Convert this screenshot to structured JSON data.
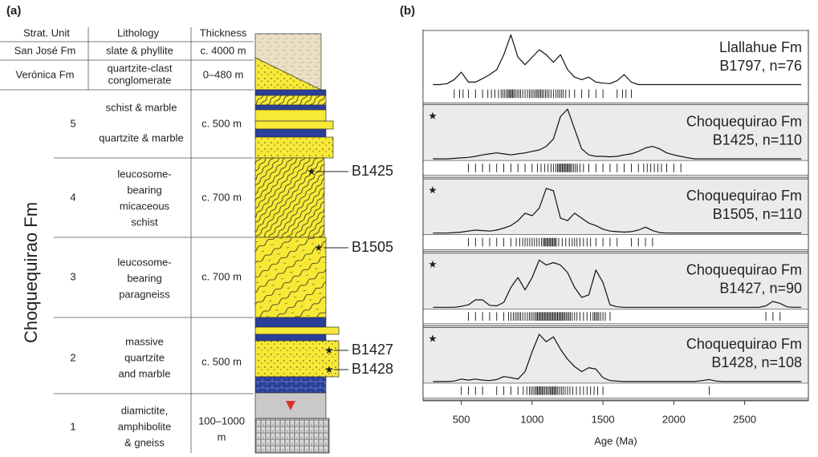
{
  "panel_a": {
    "label": "(a)",
    "headers": [
      "Strat. Unit",
      "Lithology",
      "Thickness"
    ],
    "formation": "Choquequirao Fm",
    "rows": [
      {
        "unit": "San José Fm",
        "lithology": [
          "slate & phyllite"
        ],
        "thickness": [
          "c. 4000 m"
        ]
      },
      {
        "unit": "Verónica Fm",
        "lithology": [
          "quartzite-clast",
          "conglomerate"
        ],
        "thickness": [
          "0–480 m"
        ]
      },
      {
        "unit": "5",
        "lithology": [
          "schist & marble",
          "quartzite & marble"
        ],
        "thickness": [
          "c. 500 m"
        ]
      },
      {
        "unit": "4",
        "lithology": [
          "leucosome-",
          "bearing",
          "micaceous",
          "schist"
        ],
        "thickness": [
          "c. 700 m"
        ]
      },
      {
        "unit": "3",
        "lithology": [
          "leucosome-",
          "bearing",
          "paragneiss"
        ],
        "thickness": [
          "c. 700 m"
        ]
      },
      {
        "unit": "2",
        "lithology": [
          "massive",
          "quartzite",
          "and marble"
        ],
        "thickness": [
          "c. 500 m"
        ]
      },
      {
        "unit": "1",
        "lithology": [
          "diamictite,",
          "amphibolite",
          "& gneiss"
        ],
        "thickness": [
          "100–1000",
          "m"
        ]
      }
    ],
    "samples": [
      "B1425",
      "B1505",
      "B1427",
      "B1428"
    ]
  },
  "chart_data": {
    "type": "line",
    "label": "(b)",
    "x_label": "Age (Ma)",
    "xlim": [
      230,
      2950
    ],
    "xticks": [
      500,
      1000,
      1500,
      2000,
      2500
    ],
    "x": [
      300,
      350,
      400,
      450,
      500,
      550,
      600,
      650,
      700,
      750,
      800,
      850,
      900,
      950,
      1000,
      1050,
      1100,
      1150,
      1200,
      1250,
      1300,
      1350,
      1400,
      1450,
      1500,
      1550,
      1600,
      1650,
      1700,
      1750,
      1800,
      1850,
      1900,
      1950,
      2000,
      2050,
      2100,
      2150,
      2200,
      2250,
      2300,
      2350,
      2400,
      2450,
      2500,
      2550,
      2600,
      2650,
      2700,
      2750,
      2800,
      2850,
      2900
    ],
    "series": [
      {
        "name": "Llallahue Fm",
        "sample_label": "B1797, n=76",
        "color": "#111111",
        "values": [
          0,
          0,
          0.02,
          0.1,
          0.25,
          0.05,
          0.05,
          0.12,
          0.2,
          0.3,
          0.6,
          1.0,
          0.55,
          0.4,
          0.55,
          0.7,
          0.6,
          0.45,
          0.6,
          0.3,
          0.15,
          0.1,
          0.15,
          0.05,
          0.03,
          0.02,
          0.08,
          0.2,
          0.05,
          0,
          0,
          0,
          0,
          0,
          0,
          0,
          0,
          0,
          0,
          0,
          0,
          0,
          0,
          0,
          0,
          0,
          0,
          0,
          0,
          0,
          0,
          0,
          0
        ]
      },
      {
        "name": "Choquequirao Fm",
        "sample_label": "B1425, n=110",
        "color": "#111111",
        "values": [
          0,
          0,
          0,
          0.01,
          0.02,
          0.03,
          0.05,
          0.08,
          0.1,
          0.12,
          0.1,
          0.08,
          0.1,
          0.12,
          0.15,
          0.18,
          0.25,
          0.4,
          0.85,
          1.0,
          0.6,
          0.2,
          0.08,
          0.05,
          0.05,
          0.04,
          0.05,
          0.08,
          0.1,
          0.15,
          0.22,
          0.25,
          0.2,
          0.12,
          0.08,
          0.05,
          0.02,
          0,
          0,
          0,
          0,
          0,
          0,
          0,
          0,
          0,
          0,
          0,
          0,
          0,
          0,
          0,
          0
        ]
      },
      {
        "name": "Choquequirao Fm",
        "sample_label": "B1505, n=110",
        "color": "#111111",
        "values": [
          0,
          0,
          0,
          0.01,
          0.02,
          0.04,
          0.06,
          0.05,
          0.04,
          0.06,
          0.1,
          0.15,
          0.25,
          0.4,
          0.35,
          0.5,
          0.9,
          0.85,
          0.3,
          0.25,
          0.4,
          0.3,
          0.2,
          0.15,
          0.08,
          0.04,
          0.03,
          0.02,
          0.03,
          0.06,
          0.12,
          0.05,
          0.01,
          0,
          0,
          0,
          0,
          0,
          0,
          0,
          0,
          0,
          0,
          0,
          0,
          0,
          0,
          0,
          0,
          0,
          0,
          0,
          0
        ]
      },
      {
        "name": "Choquequirao Fm",
        "sample_label": "B1427, n=90",
        "color": "#111111",
        "values": [
          0,
          0,
          0,
          0,
          0.02,
          0.05,
          0.15,
          0.15,
          0.04,
          0.03,
          0.1,
          0.4,
          0.6,
          0.35,
          0.6,
          0.95,
          0.85,
          0.9,
          0.85,
          0.7,
          0.4,
          0.2,
          0.25,
          0.75,
          0.5,
          0.05,
          0.01,
          0,
          0,
          0,
          0,
          0,
          0,
          0,
          0,
          0,
          0,
          0,
          0,
          0,
          0,
          0,
          0,
          0,
          0,
          0,
          0,
          0.03,
          0.12,
          0.08,
          0.01,
          0,
          0
        ]
      },
      {
        "name": "Choquequirao Fm",
        "sample_label": "B1428, n=108",
        "color": "#111111",
        "values": [
          0,
          0,
          0,
          0.01,
          0.05,
          0.03,
          0.05,
          0.03,
          0.02,
          0.04,
          0.1,
          0.08,
          0.05,
          0.2,
          0.6,
          0.95,
          0.8,
          0.9,
          0.65,
          0.45,
          0.3,
          0.2,
          0.28,
          0.25,
          0.08,
          0.02,
          0.01,
          0,
          0,
          0,
          0,
          0,
          0,
          0,
          0,
          0,
          0,
          0,
          0.02,
          0.04,
          0.01,
          0,
          0,
          0,
          0,
          0,
          0,
          0,
          0,
          0,
          0,
          0,
          0
        ]
      }
    ]
  }
}
